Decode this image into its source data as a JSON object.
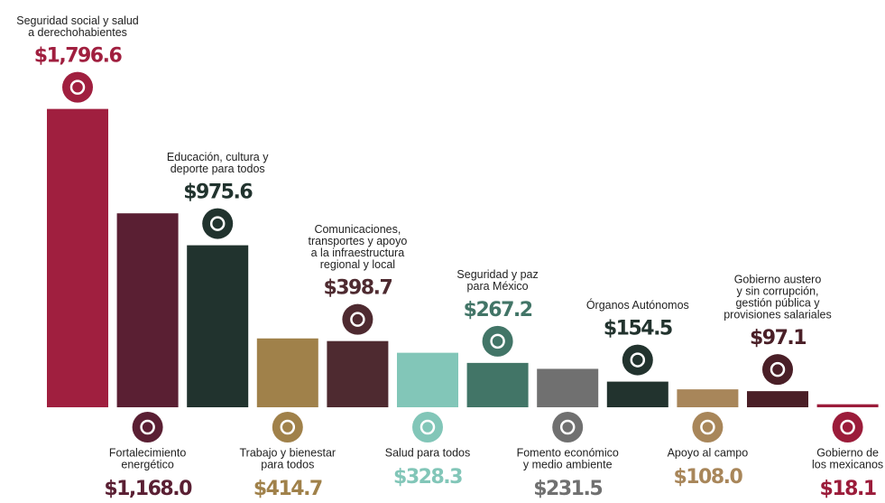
{
  "chart_data": {
    "type": "bar",
    "categories": [
      [
        "Seguridad social y salud",
        "a derechohabientes"
      ],
      [
        "Fortalecimiento",
        "energético"
      ],
      [
        "Educación, cultura y",
        "deporte para todos"
      ],
      [
        "Trabajo y bienestar",
        "para todos"
      ],
      [
        "Comunicaciones,",
        "transportes y apoyo",
        "a la infraestructura",
        "regional y local"
      ],
      [
        "Salud para todos"
      ],
      [
        "Seguridad y paz",
        "para México"
      ],
      [
        "Fomento económico",
        "y medio ambiente"
      ],
      [
        "Órganos Autónomos"
      ],
      [
        "Apoyo al campo"
      ],
      [
        "Gobierno austero",
        "y sin corrupción,",
        "gestión pública y",
        "provisiones salariales"
      ],
      [
        "Gobierno de",
        "los mexicanos"
      ]
    ],
    "values": [
      1796.6,
      1168.0,
      975.6,
      414.7,
      398.7,
      328.3,
      267.2,
      231.5,
      154.5,
      108.0,
      97.1,
      18.1
    ],
    "value_labels": [
      "$1,796.6",
      "$1,168.0",
      "$975.6",
      "$414.7",
      "$398.7",
      "$328.3",
      "$267.2",
      "$231.5",
      "$154.5",
      "$108.0",
      "$97.1",
      "$18.1"
    ],
    "colors": [
      "#a01f3f",
      "#5a1f33",
      "#21332e",
      "#a0814a",
      "#4e2a30",
      "#82c6b8",
      "#427567",
      "#707070",
      "#22332e",
      "#a8865a",
      "#4a1f27",
      "#9b1c3a"
    ],
    "ylim": [
      0,
      1800
    ]
  }
}
